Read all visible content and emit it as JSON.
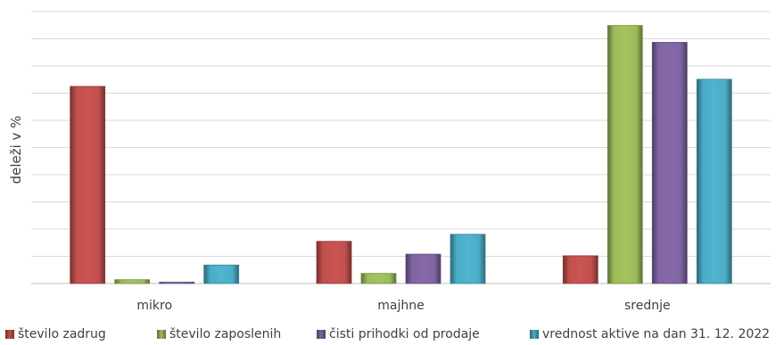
{
  "chart_data": {
    "type": "bar",
    "categories": [
      "mikro",
      "majhne",
      "srednje"
    ],
    "series": [
      {
        "name": "število zadrug",
        "values": [
          72.5,
          15.5,
          10.2
        ],
        "color": "#C0504D"
      },
      {
        "name": "število zaposlenih",
        "values": [
          1.4,
          3.7,
          94.9
        ],
        "color": "#9BBB59"
      },
      {
        "name": "čisti prihodki od prodaje",
        "values": [
          0.5,
          10.8,
          88.7
        ],
        "color": "#8064A2"
      },
      {
        "name": "vrednost aktive na dan 31. 12. 2022",
        "values": [
          6.8,
          18.1,
          75.1
        ],
        "color": "#4BACC6"
      }
    ],
    "ylabel": "deleži v %",
    "xlabel": "",
    "ylim": [
      0,
      100
    ],
    "grid": true,
    "legend_position": "bottom"
  }
}
